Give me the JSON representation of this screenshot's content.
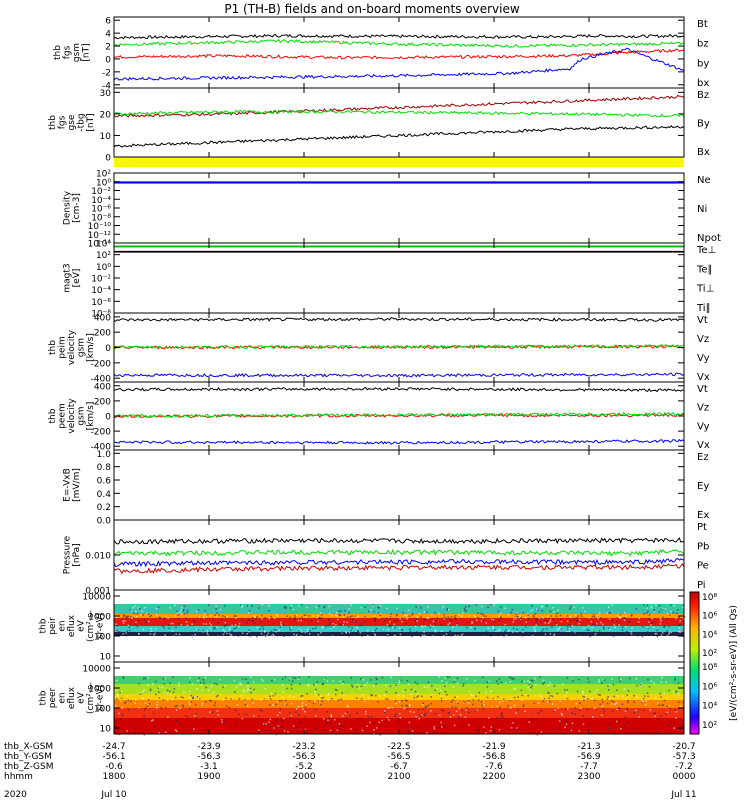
{
  "title": "P1 (TH-B) fields and on-board moments overview",
  "chart_data": [
    {
      "type": "line",
      "panel": "fgs_gsm",
      "ylabel_lines": [
        "thb",
        "fgs",
        "gsm",
        "[nT]"
      ],
      "ylim": [
        -4.5,
        6.5
      ],
      "yticks": [
        {
          "v": 6,
          "label": "6"
        },
        {
          "v": 4,
          "label": "4"
        },
        {
          "v": 2,
          "label": "2"
        },
        {
          "v": 0,
          "label": "0"
        },
        {
          "v": -2,
          "label": "-2"
        },
        {
          "v": -4,
          "label": "-4"
        }
      ],
      "series": [
        {
          "name": "Bt",
          "color": "#000000",
          "x": [
            0,
            0.3,
            0.5,
            0.75,
            0.85,
            0.92,
            1.0
          ],
          "y": [
            3.3,
            3.6,
            3.5,
            3.4,
            3.6,
            3.5,
            3.6
          ]
        },
        {
          "name": "bz",
          "color": "#ff0000",
          "x": [
            0,
            0.2,
            0.4,
            0.6,
            0.8,
            0.9,
            1.0
          ],
          "y": [
            0.3,
            0.5,
            0.2,
            0.3,
            0.5,
            1.0,
            1.4
          ]
        },
        {
          "name": "by",
          "color": "#00dd00",
          "x": [
            0,
            0.15,
            0.3,
            0.5,
            0.7,
            0.85,
            1.0
          ],
          "y": [
            2.2,
            2.5,
            2.8,
            2.3,
            2.0,
            2.2,
            2.4
          ]
        },
        {
          "name": "bx",
          "color": "#0000ff",
          "x": [
            0,
            0.2,
            0.5,
            0.7,
            0.8,
            0.82,
            0.9,
            1.0
          ],
          "y": [
            -3.1,
            -2.9,
            -2.6,
            -2.2,
            -1.5,
            0.0,
            1.5,
            -1.8
          ]
        }
      ]
    },
    {
      "type": "line",
      "panel": "fgs_gse",
      "ylabel_lines": [
        "thb",
        "fgs",
        "gse",
        "-tbg",
        "[nT]"
      ],
      "ylim": [
        0,
        32
      ],
      "yticks": [
        {
          "v": 30,
          "label": "30"
        },
        {
          "v": 20,
          "label": "20"
        },
        {
          "v": 10,
          "label": "10"
        },
        {
          "v": 0,
          "label": "0"
        }
      ],
      "series": [
        {
          "name": "Bz",
          "color": "#990000",
          "x": [
            0,
            0.2,
            0.4,
            0.6,
            0.8,
            1.0
          ],
          "y": [
            19,
            20,
            22,
            24,
            26,
            28
          ]
        },
        {
          "name": "By",
          "color": "#00dd00",
          "x": [
            0,
            0.2,
            0.4,
            0.6,
            0.8,
            1.0
          ],
          "y": [
            20,
            21,
            21,
            20.5,
            20,
            19
          ]
        },
        {
          "name": "Bx",
          "color": "#000000",
          "x": [
            0,
            0.2,
            0.4,
            0.6,
            0.8,
            1.0
          ],
          "y": [
            5,
            7,
            9,
            11,
            13,
            14
          ]
        }
      ]
    },
    {
      "type": "line",
      "panel": "density",
      "ylabel_lines": [
        "Density",
        "[cm-3]"
      ],
      "log": true,
      "ylim_exp": [
        -14,
        2
      ],
      "yticks": [
        {
          "e": 2,
          "label": "10²"
        },
        {
          "e": 0,
          "label": "10⁰"
        },
        {
          "e": -2,
          "label": "10⁻²"
        },
        {
          "e": -4,
          "label": "10⁻⁴"
        },
        {
          "e": -6,
          "label": "10⁻⁶"
        },
        {
          "e": -8,
          "label": "10⁻⁸"
        },
        {
          "e": -10,
          "label": "10⁻¹⁰"
        },
        {
          "e": -12,
          "label": "10⁻¹²"
        },
        {
          "e": -14,
          "label": "10⁻¹⁴"
        }
      ],
      "series": [
        {
          "name": "Ne",
          "color": "#cc0000",
          "value": 0.7
        },
        {
          "name": "Ni",
          "color": "#000000",
          "value": 0.6
        },
        {
          "name": "Npot",
          "color": "#0000ff",
          "value": 0.8
        }
      ]
    },
    {
      "type": "line",
      "panel": "temperature",
      "ylabel_lines": [
        "magt3",
        "[eV]"
      ],
      "log": true,
      "ylim_exp": [
        -8,
        4
      ],
      "yticks": [
        {
          "e": 4,
          "label": "10⁴"
        },
        {
          "e": 2,
          "label": "10²"
        },
        {
          "e": 0,
          "label": "10⁰"
        },
        {
          "e": -2,
          "label": "10⁻²"
        },
        {
          "e": -4,
          "label": "10⁻⁴"
        },
        {
          "e": -6,
          "label": "10⁻⁶"
        },
        {
          "e": -8,
          "label": "10⁻⁸"
        }
      ],
      "series": [
        {
          "name": "Te⊥",
          "color": "#cc0000",
          "value": 300
        },
        {
          "name": "Te∥",
          "color": "#000000",
          "value": 320
        },
        {
          "name": "Ti⊥",
          "color": "#0000ff",
          "value": 2500
        },
        {
          "name": "Ti∥",
          "color": "#00bb00",
          "value": 2700
        }
      ]
    },
    {
      "type": "line",
      "panel": "peim_velocity",
      "ylabel_lines": [
        "thb",
        "peim",
        "velocity",
        "gsm",
        "[km/s]"
      ],
      "ylim": [
        -450,
        450
      ],
      "yticks": [
        {
          "v": 400,
          "label": "400"
        },
        {
          "v": 200,
          "label": "200"
        },
        {
          "v": 0,
          "label": "0"
        },
        {
          "v": -200,
          "label": "-200"
        },
        {
          "v": -400,
          "label": "-400"
        }
      ],
      "series": [
        {
          "name": "Vt",
          "color": "#000000",
          "x": [
            0,
            0.5,
            1.0
          ],
          "y": [
            360,
            370,
            360
          ]
        },
        {
          "name": "Vz",
          "color": "#ff0000",
          "x": [
            0,
            0.5,
            1.0
          ],
          "y": [
            0,
            5,
            10
          ]
        },
        {
          "name": "Vy",
          "color": "#00dd00",
          "x": [
            0,
            0.5,
            1.0
          ],
          "y": [
            5,
            10,
            20
          ]
        },
        {
          "name": "Vx",
          "color": "#0000ff",
          "x": [
            0,
            0.5,
            1.0
          ],
          "y": [
            -360,
            -365,
            -350
          ]
        }
      ]
    },
    {
      "type": "line",
      "panel": "peem_velocity",
      "ylabel_lines": [
        "thb",
        "peem",
        "velocity",
        "gsm",
        "[km/s]"
      ],
      "ylim": [
        -450,
        450
      ],
      "yticks": [
        {
          "v": 400,
          "label": "400"
        },
        {
          "v": 200,
          "label": "200"
        },
        {
          "v": 0,
          "label": "0"
        },
        {
          "v": -200,
          "label": "-200"
        },
        {
          "v": -400,
          "label": "-400"
        }
      ],
      "series": [
        {
          "name": "Vt",
          "color": "#000000",
          "x": [
            0,
            0.5,
            1.0
          ],
          "y": [
            350,
            360,
            340
          ]
        },
        {
          "name": "Vz",
          "color": "#ff0000",
          "x": [
            0,
            0.5,
            1.0
          ],
          "y": [
            -5,
            5,
            10
          ]
        },
        {
          "name": "Vy",
          "color": "#00dd00",
          "x": [
            0,
            0.5,
            1.0
          ],
          "y": [
            0,
            15,
            30
          ]
        },
        {
          "name": "Vx",
          "color": "#0000ff",
          "x": [
            0,
            0.5,
            1.0
          ],
          "y": [
            -345,
            -355,
            -330
          ]
        }
      ]
    },
    {
      "type": "line",
      "panel": "electric_field",
      "ylabel_lines": [
        "E=-VxB",
        "[mV/m]"
      ],
      "ylim": [
        0,
        1.05
      ],
      "yticks": [
        {
          "v": 1.0,
          "label": "1.0"
        },
        {
          "v": 0.8,
          "label": "0.8"
        },
        {
          "v": 0.6,
          "label": "0.6"
        },
        {
          "v": 0.4,
          "label": "0.4"
        },
        {
          "v": 0.2,
          "label": "0.2"
        },
        {
          "v": 0.0,
          "label": "0.0"
        }
      ],
      "series": [
        {
          "name": "Ez",
          "color": "#cc0000"
        },
        {
          "name": "Ey",
          "color": "#00bb00"
        },
        {
          "name": "Ex",
          "color": "#0000ff"
        }
      ]
    },
    {
      "type": "line",
      "panel": "pressure",
      "ylabel_lines": [
        "Pressure",
        "[nPa]"
      ],
      "log": true,
      "ylim_exp": [
        -3,
        -1
      ],
      "yticks": [
        {
          "e": -2,
          "label": "0.010"
        },
        {
          "e": -3,
          "label": "0.001"
        }
      ],
      "series": [
        {
          "name": "Pt",
          "color": "#000000",
          "x": [
            0,
            0.3,
            0.6,
            0.9,
            1.0
          ],
          "y": [
            0.024,
            0.026,
            0.025,
            0.026,
            0.027
          ]
        },
        {
          "name": "Pb",
          "color": "#cc0000",
          "x": [
            0,
            0.3,
            0.6,
            0.9,
            1.0
          ],
          "y": [
            0.0035,
            0.0042,
            0.0045,
            0.0045,
            0.005
          ]
        },
        {
          "name": "Pe",
          "color": "#00dd00",
          "x": [
            0,
            0.3,
            0.6,
            0.9,
            1.0
          ],
          "y": [
            0.011,
            0.012,
            0.012,
            0.011,
            0.013
          ]
        },
        {
          "name": "Pi",
          "color": "#0000ff",
          "x": [
            0,
            0.3,
            0.6,
            0.9,
            1.0
          ],
          "y": [
            0.0055,
            0.0062,
            0.0065,
            0.0062,
            0.007
          ]
        }
      ]
    },
    {
      "type": "heatmap",
      "panel": "peir_eflux",
      "ylabel_lines": [
        "thb",
        "peir",
        "en",
        "eflux",
        "eV",
        "(cm²-s-",
        "sr-eV)"
      ],
      "log": true,
      "ylim_exp": [
        0.7,
        4.3
      ],
      "yticks": [
        {
          "e": 4,
          "label": "10000"
        },
        {
          "e": 3,
          "label": "1000"
        },
        {
          "e": 2,
          "label": "100"
        },
        {
          "e": 1,
          "label": "10"
        }
      ],
      "bands": [
        {
          "from": 3.1,
          "to": 3.6,
          "color": "#32c8a0"
        },
        {
          "from": 2.9,
          "to": 3.1,
          "color": "#ff9a00"
        },
        {
          "from": 2.5,
          "to": 2.9,
          "color": "#e41515"
        },
        {
          "from": 2.2,
          "to": 2.5,
          "color": "#3cc8c8"
        },
        {
          "from": 2.0,
          "to": 2.2,
          "color": "#202040"
        }
      ]
    },
    {
      "type": "heatmap",
      "panel": "peer_eflux",
      "ylabel_lines": [
        "thb",
        "peer",
        "en",
        "eflux",
        "eV",
        "(cm²-s-",
        "sr-eV)"
      ],
      "log": true,
      "ylim_exp": [
        0.7,
        4.3
      ],
      "yticks": [
        {
          "e": 4,
          "label": "10000"
        },
        {
          "e": 3,
          "label": "1000"
        },
        {
          "e": 2,
          "label": "100"
        },
        {
          "e": 1,
          "label": "10"
        }
      ],
      "bands": [
        {
          "from": 3.2,
          "to": 3.6,
          "color": "#40d070"
        },
        {
          "from": 2.7,
          "to": 3.2,
          "color": "#a8e020"
        },
        {
          "from": 2.4,
          "to": 2.7,
          "color": "#f8d000"
        },
        {
          "from": 2.0,
          "to": 2.4,
          "color": "#ff8000"
        },
        {
          "from": 1.5,
          "to": 2.0,
          "color": "#f03010"
        },
        {
          "from": 0.7,
          "to": 1.5,
          "color": "#d00000"
        }
      ]
    }
  ],
  "colorbar": {
    "label": "[eV/(cm²-s-sr-eV)] (All Qs)",
    "ticks": [
      "10⁸",
      "10⁶",
      "10⁴",
      "10²"
    ]
  },
  "xaxis": {
    "rows": [
      {
        "label": "thb_X-GSM",
        "values": [
          "-24.7",
          "-23.9",
          "-23.2",
          "-22.5",
          "-21.9",
          "-21.3",
          "-20.7"
        ]
      },
      {
        "label": "thb_Y-GSM",
        "values": [
          "-56.1",
          "-56.3",
          "-56.3",
          "-56.5",
          "-56.8",
          "-56.9",
          "-57.3"
        ]
      },
      {
        "label": "thb_Z-GSM",
        "values": [
          "-0.6",
          "-3.1",
          "-5.2",
          "-6.7",
          "-7.6",
          "-7.7",
          "-7.2"
        ]
      },
      {
        "label": "hhmm",
        "values": [
          "1800",
          "1900",
          "2000",
          "2100",
          "2200",
          "2300",
          "0000"
        ]
      }
    ],
    "year": "2020",
    "dates": [
      {
        "index": 0,
        "label": "Jul 10"
      },
      {
        "index": 6,
        "label": "Jul 11"
      }
    ]
  }
}
